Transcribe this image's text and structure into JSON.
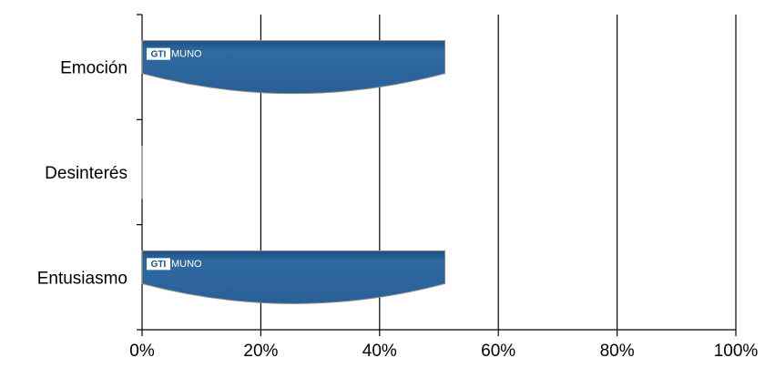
{
  "chart_data": {
    "type": "bar",
    "orientation": "horizontal",
    "categories": [
      "Emoción",
      "Desinterés",
      "Entusiasmo"
    ],
    "values": [
      51,
      0,
      51
    ],
    "color": "#2f6aa3",
    "logo_box": "GTI",
    "logo_text": "MUNO",
    "xlim": [
      0,
      100
    ],
    "xticks": [
      {
        "value": 0,
        "label": "0%"
      },
      {
        "value": 20,
        "label": "20%"
      },
      {
        "value": 40,
        "label": "40%"
      },
      {
        "value": 60,
        "label": "60%"
      },
      {
        "value": 80,
        "label": "80%"
      },
      {
        "value": 100,
        "label": "100%"
      }
    ],
    "grid": true
  }
}
